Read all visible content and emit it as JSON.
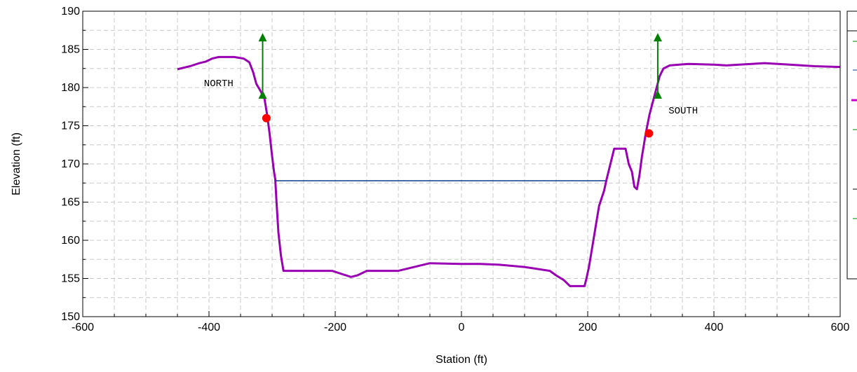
{
  "chart_data": {
    "type": "line",
    "xlabel": "Station (ft)",
    "ylabel": "Elevation (ft)",
    "xlim": [
      -600,
      600
    ],
    "ylim": [
      150,
      190
    ],
    "x_ticks": [
      "-600",
      "-400",
      "-200",
      "0",
      "200",
      "400",
      "600"
    ],
    "y_ticks": [
      "150",
      "155",
      "160",
      "165",
      "170",
      "175",
      "180",
      "185",
      "190"
    ],
    "grid": true,
    "legend_position": "right (partially cropped)",
    "series": [
      {
        "color": "#9900b3",
        "style": "solid",
        "points": [
          [
            -450,
            182.4
          ],
          [
            -430,
            182.8
          ],
          [
            -415,
            183.2
          ],
          [
            -405,
            183.4
          ],
          [
            -395,
            183.8
          ],
          [
            -385,
            184.0
          ],
          [
            -360,
            184.0
          ],
          [
            -345,
            183.8
          ],
          [
            -336,
            183.3
          ],
          [
            -330,
            182.0
          ],
          [
            -325,
            180.5
          ],
          [
            -318,
            179.5
          ],
          [
            -312,
            178.5
          ],
          [
            -308,
            176.5
          ],
          [
            -304,
            174.0
          ],
          [
            -300,
            171.0
          ],
          [
            -297,
            169.0
          ],
          [
            -295,
            168.0
          ],
          [
            -293,
            165.0
          ],
          [
            -290,
            161.0
          ],
          [
            -286,
            158.0
          ],
          [
            -282,
            156.0
          ],
          [
            -270,
            156.0
          ],
          [
            -240,
            156.0
          ],
          [
            -205,
            156.0
          ],
          [
            -190,
            155.6
          ],
          [
            -175,
            155.2
          ],
          [
            -165,
            155.4
          ],
          [
            -150,
            156.0
          ],
          [
            -120,
            156.0
          ],
          [
            -100,
            156.0
          ],
          [
            -80,
            156.4
          ],
          [
            -50,
            157.0
          ],
          [
            0,
            156.9
          ],
          [
            30,
            156.9
          ],
          [
            60,
            156.8
          ],
          [
            100,
            156.5
          ],
          [
            140,
            156.0
          ],
          [
            150,
            155.4
          ],
          [
            162,
            154.8
          ],
          [
            172,
            154.0
          ],
          [
            195,
            154.0
          ],
          [
            198,
            155.0
          ],
          [
            202,
            156.5
          ],
          [
            206,
            158.5
          ],
          [
            210,
            160.5
          ],
          [
            214,
            162.5
          ],
          [
            218,
            164.5
          ],
          [
            222,
            165.5
          ],
          [
            226,
            166.5
          ],
          [
            230,
            168.0
          ],
          [
            236,
            170.0
          ],
          [
            242,
            172.0
          ],
          [
            260,
            172.0
          ],
          [
            265,
            170.0
          ],
          [
            270,
            169.0
          ],
          [
            274,
            167.0
          ],
          [
            278,
            166.7
          ],
          [
            282,
            168.5
          ],
          [
            286,
            171.0
          ],
          [
            292,
            174.0
          ],
          [
            298,
            176.5
          ],
          [
            306,
            179.0
          ],
          [
            314,
            181.5
          ],
          [
            320,
            182.5
          ],
          [
            330,
            182.9
          ],
          [
            345,
            183.0
          ],
          [
            360,
            183.1
          ],
          [
            400,
            183.0
          ],
          [
            420,
            182.9
          ],
          [
            440,
            183.0
          ],
          [
            460,
            183.1
          ],
          [
            480,
            183.2
          ],
          [
            520,
            183.0
          ],
          [
            560,
            182.8
          ],
          [
            600,
            182.7
          ]
        ]
      },
      {
        "color": "#0a3a8a",
        "style": "solid",
        "points": [
          [
            -295,
            167.8
          ],
          [
            228,
            167.8
          ]
        ]
      }
    ],
    "markers": [
      {
        "type": "circle",
        "color": "#ff0000",
        "x": -309,
        "y": 176.0
      },
      {
        "type": "circle",
        "color": "#ff0000",
        "x": 297,
        "y": 174.0
      }
    ],
    "arrows": [
      {
        "color": "#008000",
        "x": -315,
        "y_from": 179.0,
        "y_to": 186.5
      },
      {
        "color": "#008000",
        "x": 311,
        "y_from": 179.0,
        "y_to": 186.5
      }
    ],
    "annotations": [
      {
        "text": "NORTH",
        "x": -408,
        "y": 180.2
      },
      {
        "text": "SOUTH",
        "x": 328,
        "y": 176.6
      }
    ]
  }
}
